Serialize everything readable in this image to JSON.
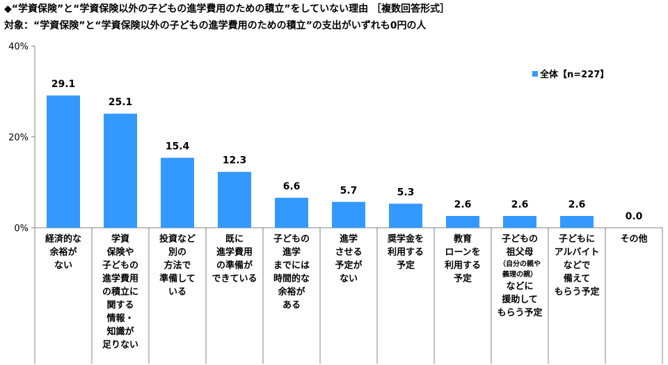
{
  "header": {
    "title_line1": "◆“学資保険”と“学資保険以外の子どもの進学費用のための積立”をしていない理由 ［複数回答形式］",
    "title_line2": "対象：“学資保険”と“学資保険以外の子どもの進学費用のための積立”の支出がいずれも0円の人"
  },
  "chart_data": {
    "type": "bar",
    "categories": [
      "経済的な余裕がない",
      "学資保険や子どもの進学費用の積立に関する情報・知識が足りない",
      "投資など別の方法で準備している",
      "既に進学費用の準備ができている",
      "子どもの進学までには時間的な余裕がある",
      "進学させる予定がない",
      "奨学金を利用する予定",
      "教育ローンを利用する予定",
      "子どもの祖父母（自分の親や義理の親）などに援助してもらう予定",
      "子どもにアルバイトなどで備えてもらう予定",
      "その他"
    ],
    "category_lines": [
      [
        "経済的な",
        "余裕が",
        "ない"
      ],
      [
        "学資",
        "保険や",
        "子どもの",
        "進学費用",
        "の積立に",
        "関する",
        "情報・",
        "知識が",
        "足りない"
      ],
      [
        "投資など",
        "別の",
        "方法で",
        "準備して",
        "いる"
      ],
      [
        "既に",
        "進学費用",
        "の準備が",
        "できている"
      ],
      [
        "子どもの",
        "進学",
        "までには",
        "時間的な",
        "余裕が",
        "ある"
      ],
      [
        "進学",
        "させる",
        "予定が",
        "ない"
      ],
      [
        "奨学金を",
        "利用する",
        "予定"
      ],
      [
        "教育",
        "ローンを",
        "利用する",
        "予定"
      ],
      [
        "子どもの",
        "祖父母",
        {
          "sub": "（自分の親や"
        },
        {
          "sub": "義理の親）"
        },
        "などに",
        "援助して",
        "もらう予定"
      ],
      [
        "子どもに",
        "アルバイト",
        "などで",
        "備えて",
        "もらう予定"
      ],
      [
        "その他"
      ]
    ],
    "series": [
      {
        "name": "全体【n=227】",
        "values": [
          29.1,
          25.1,
          15.4,
          12.3,
          6.6,
          5.7,
          5.3,
          2.6,
          2.6,
          2.6,
          0.0
        ]
      }
    ],
    "value_labels": [
      "29.1",
      "25.1",
      "15.4",
      "12.3",
      "6.6",
      "5.7",
      "5.3",
      "2.6",
      "2.6",
      "2.6",
      "0.0"
    ],
    "ylim": [
      0,
      40
    ],
    "yticks": [
      0,
      20,
      40
    ],
    "ytick_labels": [
      "0%",
      "20%",
      "40%"
    ],
    "legend_label": "全体【n=227】",
    "legend_position": "top-right",
    "grid": false,
    "bar_color": "#3399ff",
    "axis_color": "#808080"
  }
}
